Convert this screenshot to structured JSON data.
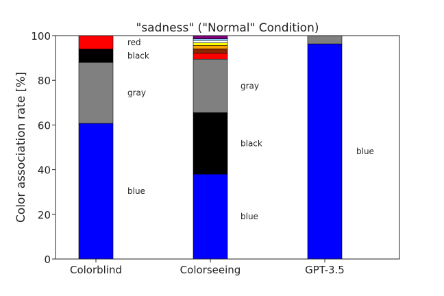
{
  "chart_data": {
    "type": "bar",
    "stacked": true,
    "title": "\"sadness\" (\"Normal\" Condition)",
    "xlabel": "",
    "ylabel": "Color association rate [%]",
    "ylim": [
      0,
      100
    ],
    "yticks": [
      0,
      20,
      40,
      60,
      80,
      100
    ],
    "grid": false,
    "categories": [
      "Colorblind",
      "Colorseeing",
      "GPT-3.5"
    ],
    "stacks": [
      {
        "category": "Colorblind",
        "segments": [
          {
            "color_name": "blue",
            "color": "#0000ff",
            "value": 60.7,
            "label": "blue"
          },
          {
            "color_name": "gray",
            "color": "#808080",
            "value": 27.3,
            "label": "gray"
          },
          {
            "color_name": "black",
            "color": "#000000",
            "value": 6.0,
            "label": "black"
          },
          {
            "color_name": "red",
            "color": "#ff0000",
            "value": 6.0,
            "label": "red"
          }
        ]
      },
      {
        "category": "Colorseeing",
        "segments": [
          {
            "color_name": "blue",
            "color": "#0000ff",
            "value": 38.0,
            "label": "blue"
          },
          {
            "color_name": "black",
            "color": "#000000",
            "value": 27.5,
            "label": "black"
          },
          {
            "color_name": "gray",
            "color": "#808080",
            "value": 24.0,
            "label": "gray"
          },
          {
            "color_name": "red",
            "color": "#ff0000",
            "value": 2.6,
            "label": ""
          },
          {
            "color_name": "brown",
            "color": "#8b2500",
            "value": 2.0,
            "label": ""
          },
          {
            "color_name": "orange",
            "color": "#ffa500",
            "value": 1.5,
            "label": ""
          },
          {
            "color_name": "yellow",
            "color": "#ffff00",
            "value": 1.2,
            "label": ""
          },
          {
            "color_name": "white",
            "color": "#ffffff",
            "value": 1.0,
            "label": ""
          },
          {
            "color_name": "light-blue",
            "color": "#87cefa",
            "value": 0.8,
            "label": ""
          },
          {
            "color_name": "purple",
            "color": "#800080",
            "value": 1.4,
            "label": ""
          }
        ]
      },
      {
        "category": "GPT-3.5",
        "segments": [
          {
            "color_name": "blue",
            "color": "#0000ff",
            "value": 96.3,
            "label": "blue"
          },
          {
            "color_name": "gray",
            "color": "#808080",
            "value": 3.7,
            "label": ""
          }
        ]
      }
    ]
  }
}
